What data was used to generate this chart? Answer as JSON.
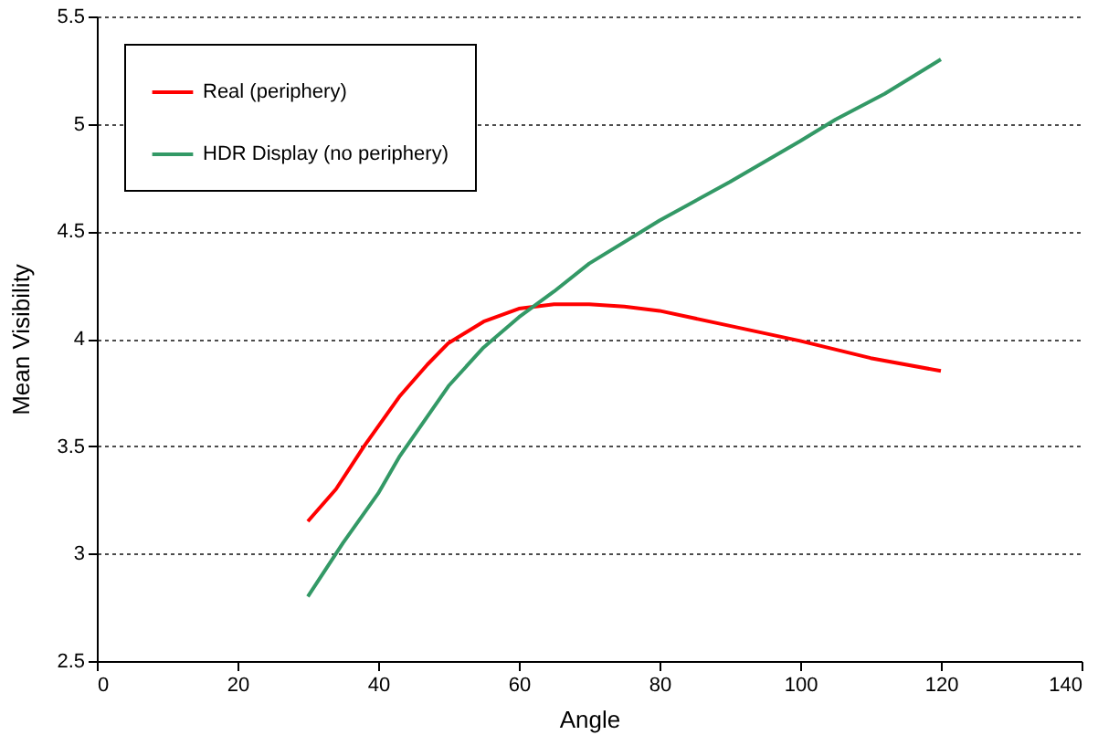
{
  "chart_data": {
    "type": "line",
    "xlabel": "Angle",
    "ylabel": "Mean Visibility",
    "xlim": [
      0,
      140
    ],
    "xticks": [
      0,
      20,
      40,
      60,
      80,
      100,
      120,
      140
    ],
    "ylim": [
      2.5,
      5.5
    ],
    "yticks": [
      2.5,
      3,
      3.5,
      4,
      4.5,
      5,
      5.5
    ],
    "grid": "y",
    "legend": "top left",
    "marker": "none",
    "line_style": "solid",
    "series": [
      {
        "name": "Real (periphery)",
        "color": "#ff0000",
        "x": [
          30,
          34,
          38,
          43,
          47,
          50,
          55,
          60,
          65,
          70,
          75,
          80,
          90,
          100,
          110,
          120
        ],
        "values": [
          3.15,
          3.3,
          3.5,
          3.73,
          3.88,
          3.98,
          4.08,
          4.14,
          4.16,
          4.16,
          4.15,
          4.13,
          4.06,
          3.99,
          3.91,
          3.85
        ]
      },
      {
        "name": "HDR Display (no periphery)",
        "color": "#339966",
        "x": [
          30,
          35,
          40,
          43,
          50,
          55,
          60,
          65,
          70,
          80,
          90,
          100,
          105,
          112,
          120
        ],
        "values": [
          2.8,
          3.05,
          3.28,
          3.45,
          3.78,
          3.96,
          4.1,
          4.22,
          4.35,
          4.55,
          4.73,
          4.92,
          5.02,
          5.14,
          5.3
        ]
      }
    ]
  }
}
